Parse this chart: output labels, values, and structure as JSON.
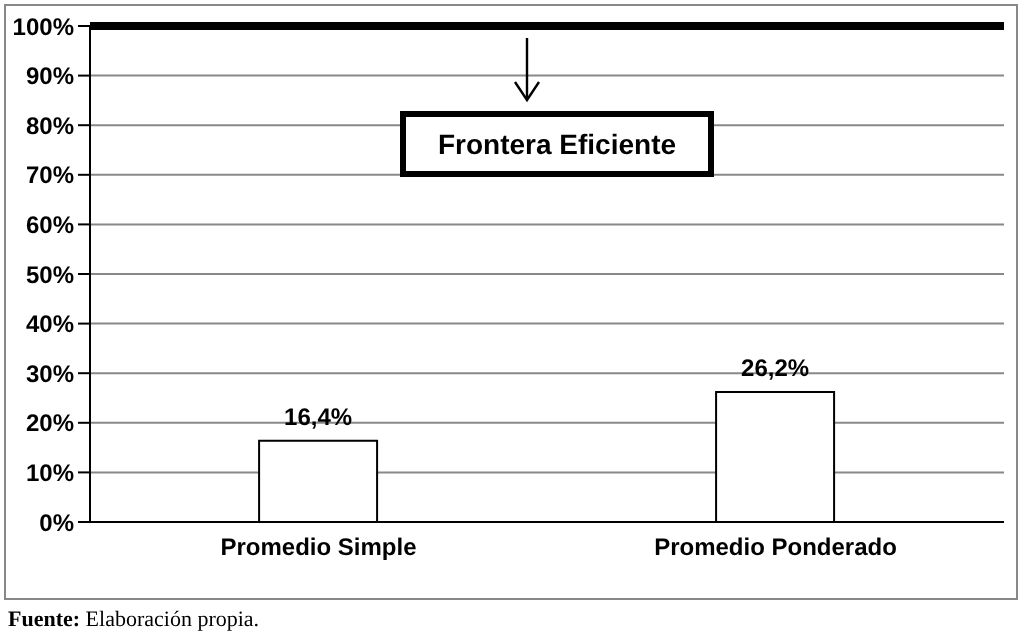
{
  "chart_data": {
    "type": "bar",
    "categories": [
      "Promedio Simple",
      "Promedio Ponderado"
    ],
    "values": [
      16.4,
      26.2
    ],
    "color": "#ffffff",
    "value_labels": [
      "16,4%",
      "26,2%"
    ],
    "ylim": [
      0,
      100
    ],
    "yticks": [
      {
        "value": 0,
        "label": "0%"
      },
      {
        "value": 10,
        "label": "10%"
      },
      {
        "value": 20,
        "label": "20%"
      },
      {
        "value": 30,
        "label": "30%"
      },
      {
        "value": 40,
        "label": "40%"
      },
      {
        "value": 50,
        "label": "50%"
      },
      {
        "value": 60,
        "label": "60%"
      },
      {
        "value": 70,
        "label": "70%"
      },
      {
        "value": 80,
        "label": "80%"
      },
      {
        "value": 90,
        "label": "90%"
      },
      {
        "value": 100,
        "label": "100%"
      }
    ],
    "grid": "y",
    "ref_lines": [
      {
        "axis": "y",
        "value": 100,
        "label": "Frontera Eficiente",
        "color": "#000000"
      }
    ],
    "annotations": [
      "Fuente: Elaboración propia."
    ]
  }
}
